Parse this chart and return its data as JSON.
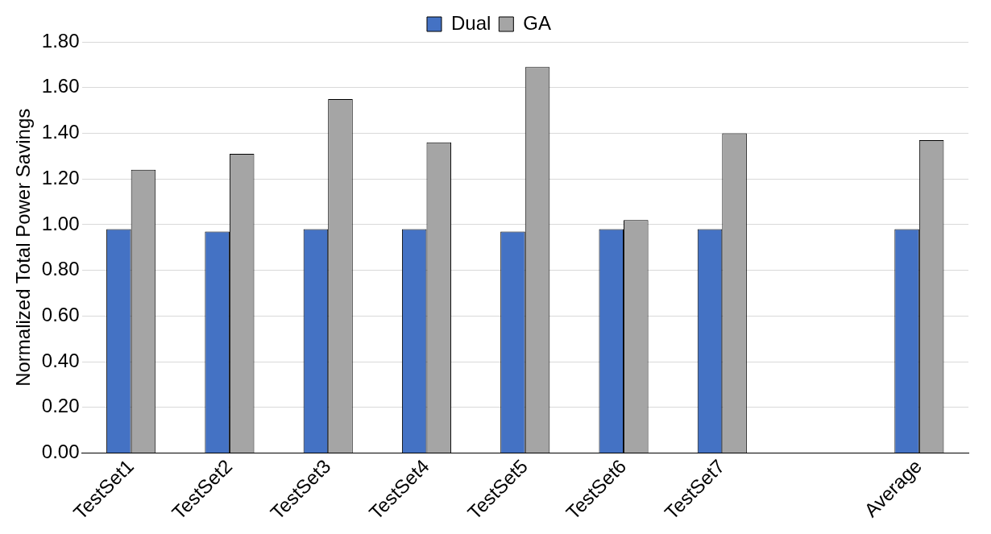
{
  "chart_data": {
    "type": "bar",
    "ylabel": "Normalized Total Power Savings",
    "categories": [
      "TestSet1",
      "TestSet2",
      "TestSet3",
      "TestSet4",
      "TestSet5",
      "TestSet6",
      "TestSet7",
      null,
      "Average"
    ],
    "series": [
      {
        "name": "Dual",
        "color": "#4472c4",
        "values": [
          0.98,
          0.97,
          0.98,
          0.98,
          0.97,
          0.98,
          0.98,
          null,
          0.98
        ]
      },
      {
        "name": "GA",
        "color": "#a5a5a5",
        "values": [
          1.24,
          1.31,
          1.55,
          1.36,
          1.69,
          1.02,
          1.4,
          null,
          1.37
        ]
      }
    ],
    "ylim": [
      0,
      1.8
    ],
    "yticks": [
      {
        "value": 0,
        "label": "0.00"
      },
      {
        "value": 0.2,
        "label": "0.20"
      },
      {
        "value": 0.4,
        "label": "0.40"
      },
      {
        "value": 0.6,
        "label": "0.60"
      },
      {
        "value": 0.8,
        "label": "0.80"
      },
      {
        "value": 1,
        "label": "1.00"
      },
      {
        "value": 1.2,
        "label": "1.20"
      },
      {
        "value": 1.4,
        "label": "1.40"
      },
      {
        "value": 1.6,
        "label": "1.60"
      },
      {
        "value": 1.8,
        "label": "1.80"
      }
    ],
    "grid": "y",
    "legend": "top"
  }
}
